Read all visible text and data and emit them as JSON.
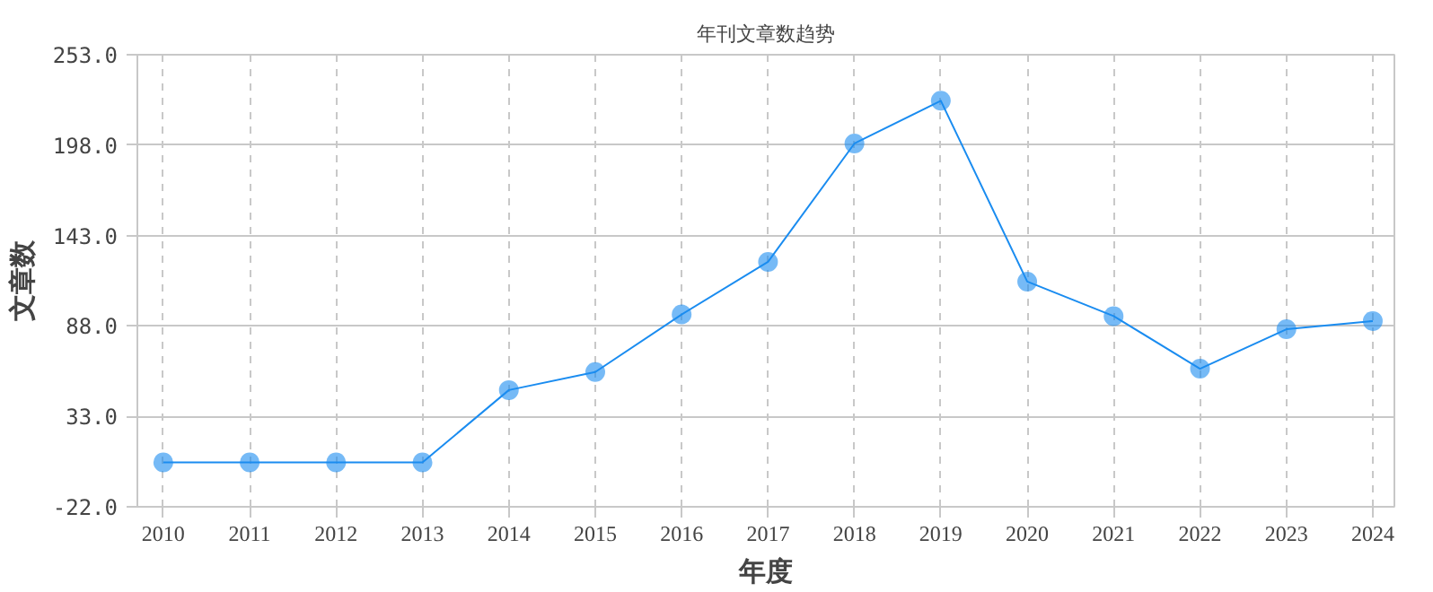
{
  "chart_data": {
    "type": "line",
    "title": "年刊文章数趋势",
    "xlabel": "年度",
    "ylabel": "文章数",
    "categories": [
      "2010",
      "2011",
      "2012",
      "2013",
      "2014",
      "2015",
      "2016",
      "2017",
      "2018",
      "2019",
      "2020",
      "2021",
      "2022",
      "2023",
      "2024"
    ],
    "series": [
      {
        "color": "#1a8cf0",
        "values": [
          5,
          5,
          5,
          5,
          49,
          60,
          95,
          127,
          199,
          225,
          115,
          94,
          62,
          86,
          91
        ]
      }
    ],
    "ylim": [
      -22,
      253
    ],
    "yticks": [
      {
        "value": -22,
        "label": "-22.0"
      },
      {
        "value": 33,
        "label": "33.0"
      },
      {
        "value": 88,
        "label": "88.0"
      },
      {
        "value": 143,
        "label": "143.0"
      },
      {
        "value": 198,
        "label": "198.0"
      },
      {
        "value": 253,
        "label": "253.0"
      }
    ],
    "grid": true,
    "marker": "circle",
    "line_style": "solid"
  }
}
